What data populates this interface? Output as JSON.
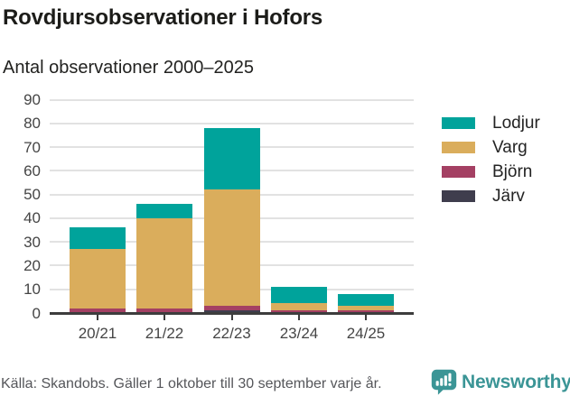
{
  "header": {
    "title": "Rovdjursobservationer i Hofors",
    "subtitle": "Antal observationer 2000–2025"
  },
  "chart_data": {
    "type": "bar",
    "stacked": true,
    "title": "Rovdjursobservationer i Hofors",
    "subtitle": "Antal observationer 2000–2025",
    "categories": [
      "20/21",
      "21/22",
      "22/23",
      "23/24",
      "24/25"
    ],
    "series": [
      {
        "name": "Lodjur",
        "color": "#00a39b",
        "values": [
          9,
          6,
          26,
          7,
          5
        ]
      },
      {
        "name": "Varg",
        "color": "#daad5c",
        "values": [
          25,
          38,
          49,
          3,
          2
        ]
      },
      {
        "name": "Björn",
        "color": "#a44063",
        "values": [
          2,
          2,
          2,
          1,
          1
        ]
      },
      {
        "name": "Järv",
        "color": "#3f3d4d",
        "values": [
          0,
          0,
          1,
          0,
          0
        ]
      }
    ],
    "stack_order_bottom_to_top": [
      "Järv",
      "Björn",
      "Varg",
      "Lodjur"
    ],
    "totals": [
      36,
      46,
      78,
      11,
      8
    ],
    "ylim": [
      0,
      90
    ],
    "yticks": [
      0,
      10,
      20,
      30,
      40,
      50,
      60,
      70,
      80,
      90
    ],
    "grid": true,
    "legend_position": "right"
  },
  "footer": {
    "source": "Källa: Skandobs. Gäller 1 oktober till 30 september varje år.",
    "brand_name": "Newsworthy"
  },
  "icons": {
    "brand_logo": "bar-chart-speech-bubble-icon"
  },
  "colors": {
    "lodjur": "#00a39b",
    "varg": "#daad5c",
    "bjorn": "#a44063",
    "jarv": "#3f3d4d",
    "axis": "#3d3d3d",
    "grid": "#e2e2e2",
    "title_text": "#1c1c19",
    "tick_text": "#454545",
    "source_text": "#55565a",
    "brand": "#3b9596",
    "background": "#ffffff"
  }
}
